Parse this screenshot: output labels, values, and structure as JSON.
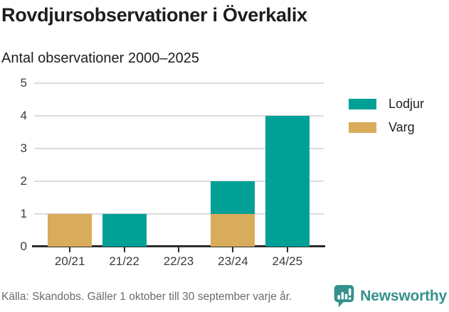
{
  "header": {
    "title": "Rovdjursobservationer i Överkalix",
    "subtitle": "Antal observationer 2000–2025"
  },
  "colors": {
    "lodjur": "#00A096",
    "varg": "#D9AC5C",
    "grid": "#DCDCDC",
    "axis": "#2B2B2B",
    "label_text": "#3A3A3A",
    "title_text": "#1D1D1B",
    "muted_text": "#6B6B6B",
    "brand_teal": "#35918C"
  },
  "chart_data": {
    "type": "bar",
    "stacked": true,
    "title": "Rovdjursobservationer i Överkalix",
    "subtitle": "Antal observationer 2000–2025",
    "categories": [
      "20/21",
      "21/22",
      "22/23",
      "23/24",
      "24/25"
    ],
    "series": [
      {
        "name": "Varg",
        "color_key": "varg",
        "values": [
          1,
          0,
          0,
          1,
          0
        ]
      },
      {
        "name": "Lodjur",
        "color_key": "lodjur",
        "values": [
          0,
          1,
          0,
          1,
          4
        ]
      }
    ],
    "xlabel": "",
    "ylabel": "",
    "ylim": [
      0,
      5
    ],
    "yticks": [
      0,
      1,
      2,
      3,
      4,
      5
    ],
    "grid": true,
    "legend_position": "right",
    "legend": [
      {
        "label": "Lodjur",
        "color_key": "lodjur"
      },
      {
        "label": "Varg",
        "color_key": "varg"
      }
    ]
  },
  "footer": {
    "source": "Källa: Skandobs. Gäller 1 oktober till 30 september varje år.",
    "brand": "Newsworthy"
  }
}
